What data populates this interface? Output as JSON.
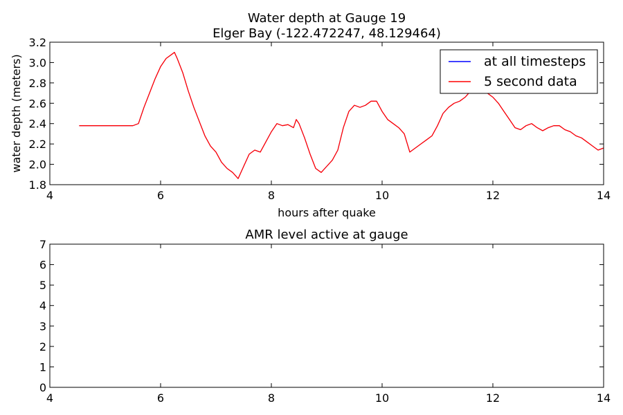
{
  "chart_data": [
    {
      "type": "line",
      "title": "Water depth at Gauge 19",
      "subtitle": "Elger Bay  (-122.472247, 48.129464)",
      "xlabel": "hours after quake",
      "ylabel": "water depth (meters)",
      "xlim": [
        4,
        14
      ],
      "ylim": [
        1.8,
        3.2
      ],
      "xticks": [
        "4",
        "6",
        "8",
        "10",
        "12",
        "14"
      ],
      "yticks": [
        "1.8",
        "2.0",
        "2.2",
        "2.4",
        "2.6",
        "2.8",
        "3.0",
        "3.2"
      ],
      "grid": false,
      "legend_position": "top-right",
      "series": [
        {
          "name": "at all timesteps",
          "color": "#0000ff",
          "x": [
            4.53,
            5.0,
            5.5,
            5.6,
            5.7,
            5.8,
            5.9,
            6.0,
            6.1,
            6.2,
            6.25,
            6.3,
            6.4,
            6.5,
            6.6,
            6.7,
            6.8,
            6.9,
            7.0,
            7.1,
            7.2,
            7.3,
            7.4,
            7.5,
            7.6,
            7.7,
            7.8,
            7.9,
            8.0,
            8.1,
            8.2,
            8.3,
            8.4,
            8.45,
            8.5,
            8.6,
            8.7,
            8.8,
            8.9,
            9.0,
            9.1,
            9.2,
            9.3,
            9.4,
            9.5,
            9.6,
            9.7,
            9.8,
            9.9,
            10.0,
            10.1,
            10.2,
            10.3,
            10.4,
            10.5,
            10.6,
            10.7,
            10.8,
            10.9,
            11.0,
            11.1,
            11.2,
            11.3,
            11.4,
            11.5,
            11.6,
            11.7,
            11.8,
            11.9,
            12.0,
            12.1,
            12.2,
            12.3,
            12.4,
            12.5,
            12.6,
            12.7,
            12.8,
            12.9,
            13.0,
            13.1,
            13.2,
            13.3,
            13.4,
            13.5,
            13.6,
            13.7,
            13.8,
            13.9,
            14.0
          ],
          "y": [
            2.38,
            2.38,
            2.38,
            2.4,
            2.56,
            2.7,
            2.84,
            2.96,
            3.04,
            3.08,
            3.1,
            3.04,
            2.9,
            2.72,
            2.56,
            2.42,
            2.28,
            2.18,
            2.12,
            2.02,
            1.96,
            1.92,
            1.86,
            1.98,
            2.1,
            2.14,
            2.12,
            2.22,
            2.32,
            2.4,
            2.38,
            2.39,
            2.36,
            2.44,
            2.4,
            2.26,
            2.1,
            1.96,
            1.92,
            1.98,
            2.04,
            2.14,
            2.36,
            2.52,
            2.58,
            2.56,
            2.58,
            2.62,
            2.62,
            2.52,
            2.44,
            2.4,
            2.36,
            2.3,
            2.12,
            2.16,
            2.2,
            2.24,
            2.28,
            2.38,
            2.5,
            2.56,
            2.6,
            2.62,
            2.66,
            2.72,
            2.74,
            2.72,
            2.7,
            2.66,
            2.6,
            2.52,
            2.44,
            2.36,
            2.34,
            2.38,
            2.4,
            2.36,
            2.33,
            2.36,
            2.38,
            2.38,
            2.34,
            2.32,
            2.28,
            2.26,
            2.22,
            2.18,
            2.14,
            2.16
          ]
        },
        {
          "name": "5 second data",
          "color": "#ff0000",
          "x": [
            4.53,
            5.0,
            5.5,
            5.6,
            5.7,
            5.8,
            5.9,
            6.0,
            6.1,
            6.2,
            6.25,
            6.3,
            6.4,
            6.5,
            6.6,
            6.7,
            6.8,
            6.9,
            7.0,
            7.1,
            7.2,
            7.3,
            7.4,
            7.5,
            7.6,
            7.7,
            7.8,
            7.9,
            8.0,
            8.1,
            8.2,
            8.3,
            8.4,
            8.45,
            8.5,
            8.6,
            8.7,
            8.8,
            8.9,
            9.0,
            9.1,
            9.2,
            9.3,
            9.4,
            9.5,
            9.6,
            9.7,
            9.8,
            9.9,
            10.0,
            10.1,
            10.2,
            10.3,
            10.4,
            10.5,
            10.6,
            10.7,
            10.8,
            10.9,
            11.0,
            11.1,
            11.2,
            11.3,
            11.4,
            11.5,
            11.6,
            11.7,
            11.8,
            11.9,
            12.0,
            12.1,
            12.2,
            12.3,
            12.4,
            12.5,
            12.6,
            12.7,
            12.8,
            12.9,
            13.0,
            13.1,
            13.2,
            13.3,
            13.4,
            13.5,
            13.6,
            13.7,
            13.8,
            13.9,
            14.0
          ],
          "y": [
            2.38,
            2.38,
            2.38,
            2.4,
            2.56,
            2.7,
            2.84,
            2.96,
            3.04,
            3.08,
            3.1,
            3.04,
            2.9,
            2.72,
            2.56,
            2.42,
            2.28,
            2.18,
            2.12,
            2.02,
            1.96,
            1.92,
            1.86,
            1.98,
            2.1,
            2.14,
            2.12,
            2.22,
            2.32,
            2.4,
            2.38,
            2.39,
            2.36,
            2.44,
            2.4,
            2.26,
            2.1,
            1.96,
            1.92,
            1.98,
            2.04,
            2.14,
            2.36,
            2.52,
            2.58,
            2.56,
            2.58,
            2.62,
            2.62,
            2.52,
            2.44,
            2.4,
            2.36,
            2.3,
            2.12,
            2.16,
            2.2,
            2.24,
            2.28,
            2.38,
            2.5,
            2.56,
            2.6,
            2.62,
            2.66,
            2.72,
            2.74,
            2.72,
            2.7,
            2.66,
            2.6,
            2.52,
            2.44,
            2.36,
            2.34,
            2.38,
            2.4,
            2.36,
            2.33,
            2.36,
            2.38,
            2.38,
            2.34,
            2.32,
            2.28,
            2.26,
            2.22,
            2.18,
            2.14,
            2.16
          ]
        }
      ]
    },
    {
      "type": "line",
      "title": "AMR level active at gauge",
      "xlim": [
        4,
        14
      ],
      "ylim": [
        0,
        7
      ],
      "xticks": [
        "4",
        "6",
        "8",
        "10",
        "12",
        "14"
      ],
      "yticks": [
        "0",
        "1",
        "2",
        "3",
        "4",
        "5",
        "6",
        "7"
      ],
      "grid": false,
      "series": []
    }
  ]
}
